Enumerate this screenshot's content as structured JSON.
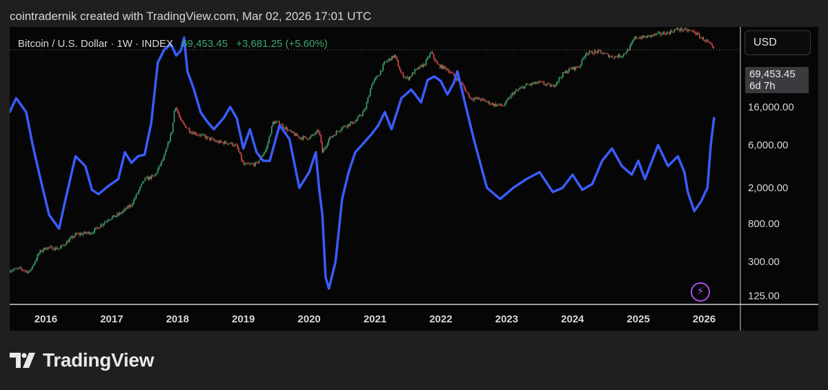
{
  "header": {
    "text": "cointradernik created with TradingView.com, Mar 02, 2026 17:01 UTC"
  },
  "chart_title": {
    "symbol": "Bitcoin / U.S. Dollar · 1W · INDEX",
    "price": "69,453.45",
    "change": "+3,681.25 (+5.60%)"
  },
  "currency_button": "USD",
  "price_label": {
    "price": "69,453.45",
    "countdown": "6d 7h"
  },
  "footer": {
    "logo_text": "TradingView"
  },
  "colors": {
    "up": "#3fa66e",
    "down": "#e04b4b",
    "overlay": "#3a5cff",
    "background": "#060606"
  },
  "chart_data": {
    "type": "line",
    "scale": "log",
    "y_ticks": [
      125,
      300,
      800,
      2000,
      6000,
      16000
    ],
    "y_tick_labels": [
      "125.00",
      "300.00",
      "800.00",
      "2,000.00",
      "6,000.00",
      "16,000.00"
    ],
    "x_ticks": [
      2016,
      2017,
      2018,
      2019,
      2020,
      2021,
      2022,
      2023,
      2024,
      2025,
      2026
    ],
    "x_tick_labels": [
      "2016",
      "2017",
      "2018",
      "2019",
      "2020",
      "2021",
      "2022",
      "2023",
      "2024",
      "2025",
      "2026"
    ],
    "xlim": [
      2015.45,
      2026.55
    ],
    "ylim": [
      100,
      125000
    ],
    "last_price": 69453.45,
    "series": [
      {
        "type": "candlestick",
        "x": [
          2015.45,
          2015.6,
          2015.75,
          2015.9,
          2016.0,
          2016.2,
          2016.45,
          2016.7,
          2016.95,
          2017.1,
          2017.3,
          2017.5,
          2017.65,
          2017.8,
          2017.92,
          2017.96,
          2018.05,
          2018.2,
          2018.4,
          2018.6,
          2018.8,
          2018.9,
          2019.0,
          2019.2,
          2019.35,
          2019.45,
          2019.55,
          2019.7,
          2019.85,
          2020.0,
          2020.15,
          2020.2,
          2020.3,
          2020.5,
          2020.7,
          2020.85,
          2020.95,
          2021.05,
          2021.15,
          2021.3,
          2021.4,
          2021.5,
          2021.6,
          2021.75,
          2021.85,
          2021.95,
          2022.1,
          2022.3,
          2022.45,
          2022.6,
          2022.8,
          2022.95,
          2023.1,
          2023.3,
          2023.5,
          2023.7,
          2023.85,
          2023.95,
          2024.1,
          2024.2,
          2024.4,
          2024.6,
          2024.75,
          2024.85,
          2024.95,
          2025.1,
          2025.3,
          2025.45,
          2025.6,
          2025.75,
          2025.85,
          2025.95,
          2026.05,
          2026.15
        ],
        "values": [
          240,
          250,
          230,
          380,
          430,
          420,
          600,
          640,
          900,
          1000,
          1300,
          2500,
          2700,
          4500,
          9000,
          17000,
          11000,
          8500,
          7500,
          6500,
          6300,
          5800,
          3600,
          3700,
          5500,
          10800,
          10500,
          8500,
          7300,
          7200,
          8700,
          5000,
          7000,
          9500,
          11000,
          15000,
          29000,
          36000,
          50000,
          60000,
          37000,
          33000,
          40000,
          48000,
          65000,
          47000,
          42000,
          30000,
          20000,
          19500,
          17000,
          16500,
          23000,
          28000,
          30000,
          27000,
          37000,
          42000,
          45000,
          64000,
          66000,
          58000,
          60000,
          70000,
          95000,
          96000,
          104000,
          108000,
          118000,
          114000,
          110000,
          95000,
          85000,
          69453.45
        ]
      },
      {
        "type": "line",
        "x": [
          2015.45,
          2015.55,
          2015.7,
          2015.8,
          2015.95,
          2016.05,
          2016.2,
          2016.3,
          2016.45,
          2016.6,
          2016.7,
          2016.8,
          2016.95,
          2017.1,
          2017.2,
          2017.3,
          2017.4,
          2017.5,
          2017.6,
          2017.7,
          2017.8,
          2017.9,
          2017.98,
          2018.05,
          2018.1,
          2018.15,
          2018.25,
          2018.35,
          2018.45,
          2018.55,
          2018.7,
          2018.8,
          2018.9,
          2019.0,
          2019.1,
          2019.2,
          2019.3,
          2019.4,
          2019.55,
          2019.7,
          2019.85,
          2020.0,
          2020.1,
          2020.15,
          2020.2,
          2020.25,
          2020.3,
          2020.4,
          2020.5,
          2020.6,
          2020.7,
          2020.8,
          2020.95,
          2021.05,
          2021.15,
          2021.25,
          2021.4,
          2021.55,
          2021.7,
          2021.8,
          2021.9,
          2022.0,
          2022.1,
          2022.2,
          2022.25,
          2022.35,
          2022.5,
          2022.7,
          2022.9,
          2023.1,
          2023.3,
          2023.5,
          2023.7,
          2023.85,
          2024.0,
          2024.15,
          2024.3,
          2024.45,
          2024.6,
          2024.75,
          2024.9,
          2025.0,
          2025.1,
          2025.3,
          2025.45,
          2025.6,
          2025.7,
          2025.75,
          2025.85,
          2025.95,
          2026.05,
          2026.1,
          2026.15
        ],
        "values": [
          14000,
          20000,
          14000,
          6000,
          2000,
          1000,
          700,
          1500,
          4500,
          3500,
          1900,
          1700,
          2100,
          2500,
          5000,
          3800,
          4500,
          4700,
          10500,
          50000,
          70000,
          80000,
          60000,
          68000,
          95000,
          40000,
          25000,
          14000,
          11000,
          9000,
          12000,
          16000,
          12000,
          5500,
          9000,
          5000,
          4000,
          4000,
          10000,
          7000,
          2000,
          3000,
          5000,
          2000,
          1000,
          200,
          150,
          300,
          1500,
          3000,
          5000,
          6000,
          8000,
          10000,
          14000,
          9000,
          20000,
          25000,
          18000,
          32000,
          35000,
          31000,
          22000,
          30000,
          40000,
          20000,
          7000,
          2000,
          1500,
          2000,
          2500,
          3000,
          1800,
          2000,
          2800,
          1900,
          2200,
          4000,
          5500,
          3500,
          2800,
          4000,
          2500,
          6000,
          3500,
          4500,
          3000,
          1800,
          1100,
          1400,
          2000,
          6000,
          12000
        ]
      }
    ]
  }
}
